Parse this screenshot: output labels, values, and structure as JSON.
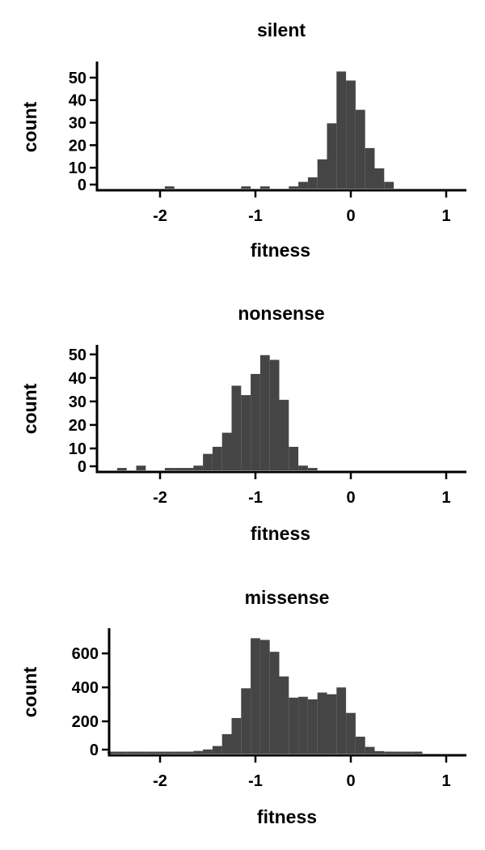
{
  "chart_data": [
    {
      "type": "bar",
      "title": "silent",
      "xlabel": "fitness",
      "ylabel": "count",
      "xlim": [
        -2.65,
        1.2
      ],
      "ylim": [
        0,
        55
      ],
      "xticks": [
        -2,
        -1,
        0,
        1
      ],
      "xtick_labels": [
        "-2",
        "-1",
        "0",
        "1"
      ],
      "yticks": [
        0,
        10,
        20,
        30,
        40,
        50
      ],
      "ytick_labels": [
        "0",
        "10",
        "20",
        "30",
        "40",
        "50"
      ],
      "bin_width": 0.1,
      "bin_starts": [
        -1.95,
        -1.15,
        -0.95,
        -0.65,
        -0.55,
        -0.45,
        -0.35,
        -0.25,
        -0.15,
        -0.05,
        0.05,
        0.15,
        0.25,
        0.35
      ],
      "values": [
        1,
        1,
        1,
        1,
        3,
        5,
        13,
        29,
        52,
        48,
        35,
        18,
        9,
        3
      ],
      "grid": false,
      "color": "#454545"
    },
    {
      "type": "bar",
      "title": "nonsense",
      "xlabel": "fitness",
      "ylabel": "count",
      "xlim": [
        -2.65,
        1.2
      ],
      "ylim": [
        0,
        52
      ],
      "xticks": [
        -2,
        -1,
        0,
        1
      ],
      "xtick_labels": [
        "-2",
        "-1",
        "0",
        "1"
      ],
      "yticks": [
        0,
        10,
        20,
        30,
        40,
        50
      ],
      "ytick_labels": [
        "0",
        "10",
        "20",
        "30",
        "40",
        "50"
      ],
      "bin_width": 0.1,
      "bin_starts": [
        -2.45,
        -2.25,
        -1.95,
        -1.85,
        -1.75,
        -1.65,
        -1.55,
        -1.45,
        -1.35,
        -1.25,
        -1.15,
        -1.05,
        -0.95,
        -0.85,
        -0.75,
        -0.65,
        -0.55,
        -0.45
      ],
      "values": [
        1,
        2,
        1,
        1,
        1,
        2,
        7,
        10,
        16,
        36,
        32,
        41,
        49,
        47,
        30,
        10,
        2,
        1
      ],
      "grid": false,
      "color": "#454545"
    },
    {
      "type": "bar",
      "title": "missense",
      "xlabel": "fitness",
      "ylabel": "count",
      "xlim": [
        -2.65,
        1.2
      ],
      "ylim": [
        0,
        720
      ],
      "xticks": [
        -2,
        -1,
        0,
        1
      ],
      "xtick_labels": [
        "-2",
        "-1",
        "0",
        "1"
      ],
      "yticks": [
        0,
        200,
        400,
        600
      ],
      "ytick_labels": [
        "0",
        "200",
        "400",
        "600"
      ],
      "bin_width": 0.1,
      "bin_starts": [
        -2.55,
        -2.45,
        -2.35,
        -2.25,
        -2.15,
        -2.05,
        -1.95,
        -1.85,
        -1.75,
        -1.65,
        -1.55,
        -1.45,
        -1.35,
        -1.25,
        -1.15,
        -1.05,
        -0.95,
        -0.85,
        -0.75,
        -0.65,
        -0.55,
        -0.45,
        -0.35,
        -0.25,
        -0.15,
        -0.05,
        0.05,
        0.15,
        0.25,
        0.35,
        0.45,
        0.55,
        0.65
      ],
      "values": [
        3,
        3,
        3,
        3,
        6,
        5,
        5,
        6,
        10,
        16,
        25,
        45,
        115,
        210,
        385,
        680,
        670,
        600,
        455,
        330,
        335,
        320,
        360,
        350,
        390,
        240,
        100,
        40,
        15,
        8,
        5,
        3,
        3
      ],
      "grid": false,
      "color": "#454545"
    }
  ]
}
